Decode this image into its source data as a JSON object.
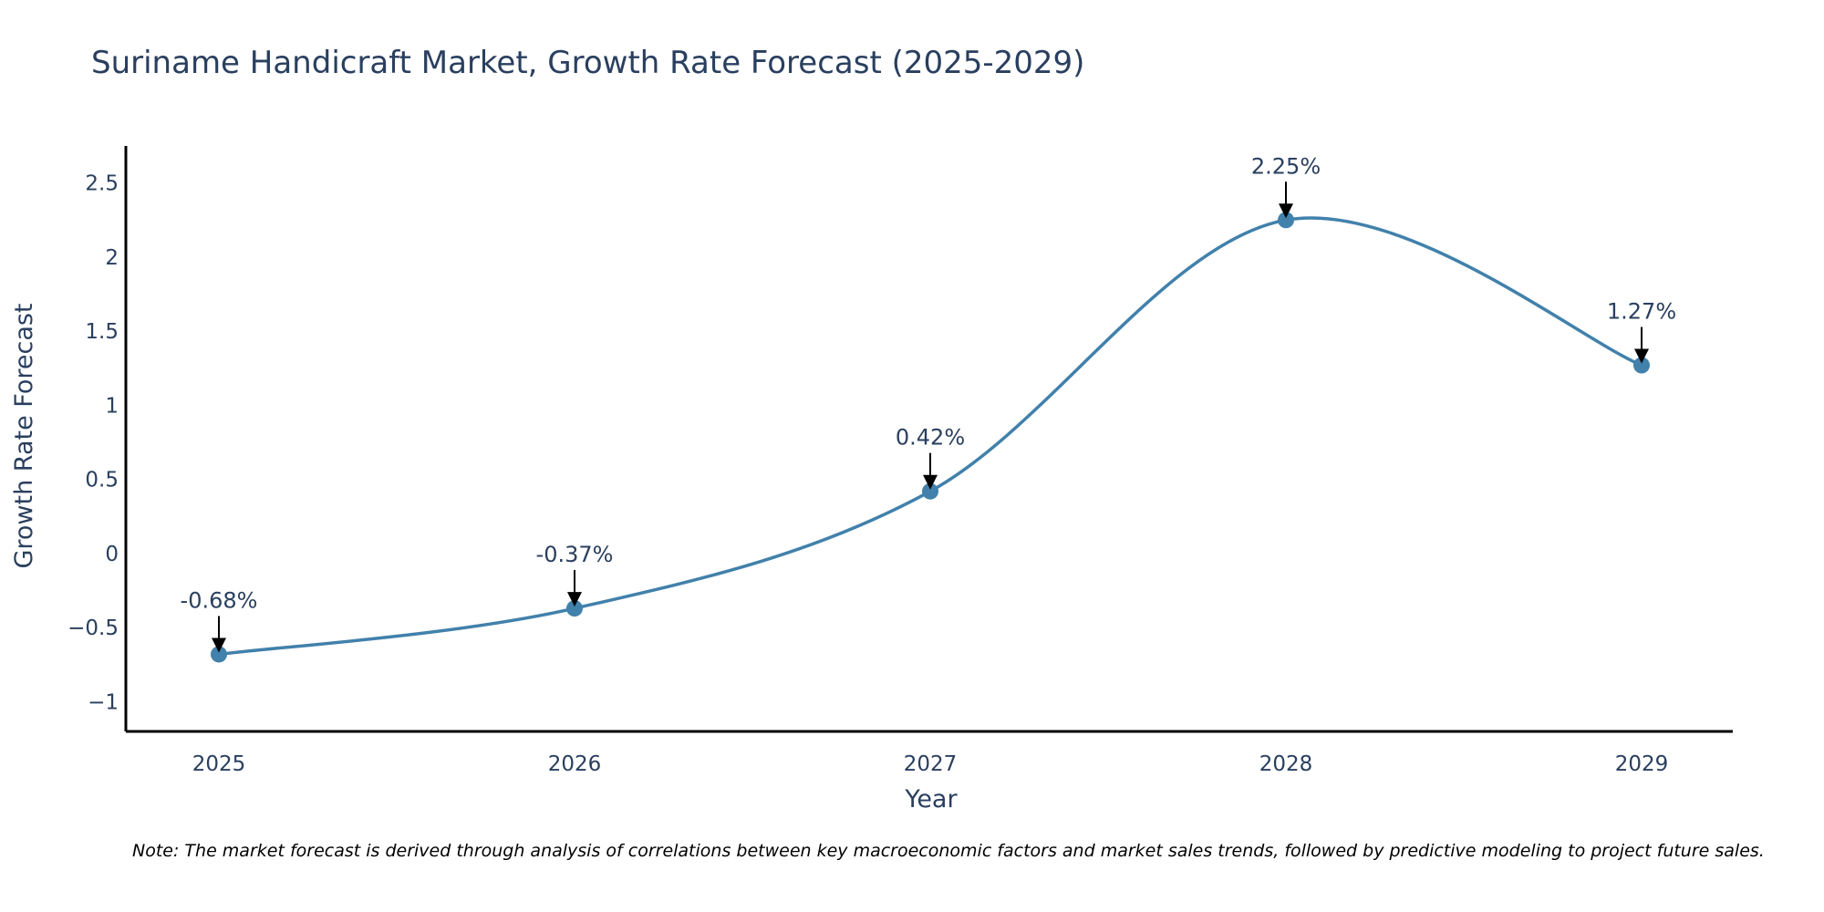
{
  "chart_data": {
    "type": "line",
    "title": "Suriname Handicraft Market, Growth Rate Forecast (2025-2029)",
    "xlabel": "Year",
    "ylabel": "Growth Rate Forecast",
    "categories": [
      "2025",
      "2026",
      "2027",
      "2028",
      "2029"
    ],
    "series": [
      {
        "name": "Growth Rate Forecast",
        "values": [
          -0.68,
          -0.37,
          0.42,
          2.25,
          1.27
        ],
        "labels": [
          "-0.68%",
          "-0.37%",
          "0.42%",
          "2.25%",
          "1.27%"
        ]
      }
    ],
    "y_ticks": [
      -1,
      -0.5,
      0,
      0.5,
      1,
      1.5,
      2,
      2.5
    ],
    "y_tick_labels": [
      "−1",
      "−0.5",
      "0",
      "0.5",
      "1",
      "1.5",
      "2",
      "2.5"
    ],
    "ylim": [
      -1.2,
      2.75
    ],
    "grid": false,
    "line_color": "#4181ab",
    "axis_color": "#000000",
    "text_color": "#2a3f5f",
    "note": "Note: The market forecast is derived through analysis of correlations between key macroeconomic factors and market sales trends, followed by predictive modeling to project future sales."
  }
}
